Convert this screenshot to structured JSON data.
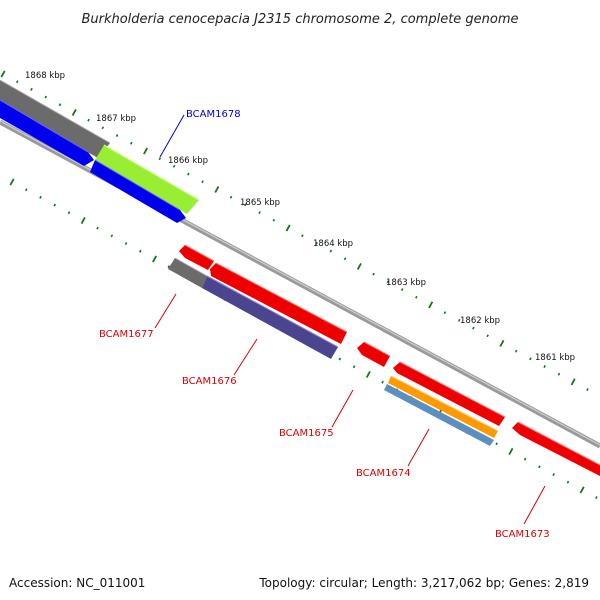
{
  "title": "Burkholderia cenocepacia J2315 chromosome 2, complete genome",
  "footer": {
    "accession": "Accession: NC_011001",
    "topology": "Topology: circular; Length: 3,217,062 bp; Genes: 2,819"
  },
  "kbp_labels": [
    "1868 kbp",
    "1867 kbp",
    "1866 kbp",
    "1865 kbp",
    "1864 kbp",
    "1863 kbp",
    "1862 kbp",
    "1861 kbp"
  ],
  "genes": [
    {
      "name": "BCAM1678",
      "strand": "forward",
      "color": "#0000cc"
    },
    {
      "name": "BCAM1677",
      "strand": "reverse",
      "color": "#dd0000"
    },
    {
      "name": "BCAM1676",
      "strand": "reverse",
      "color": "#dd0000"
    },
    {
      "name": "BCAM1675",
      "strand": "reverse",
      "color": "#dd0000"
    },
    {
      "name": "BCAM1674",
      "strand": "reverse",
      "color": "#dd0000"
    },
    {
      "name": "BCAM1673",
      "strand": "reverse",
      "color": "#dd0000"
    }
  ],
  "colors": {
    "backbone": "#8a8a8a",
    "forward_cds": "#0000ee",
    "reverse_cds": "#ee0000",
    "gray_feature": "#6e6e6e",
    "green_feature": "#99ee33",
    "purple_feature": "#4b4590",
    "orange_feature": "#ff9900",
    "steel_feature": "#5b8fc0",
    "ticks": "#117711"
  }
}
